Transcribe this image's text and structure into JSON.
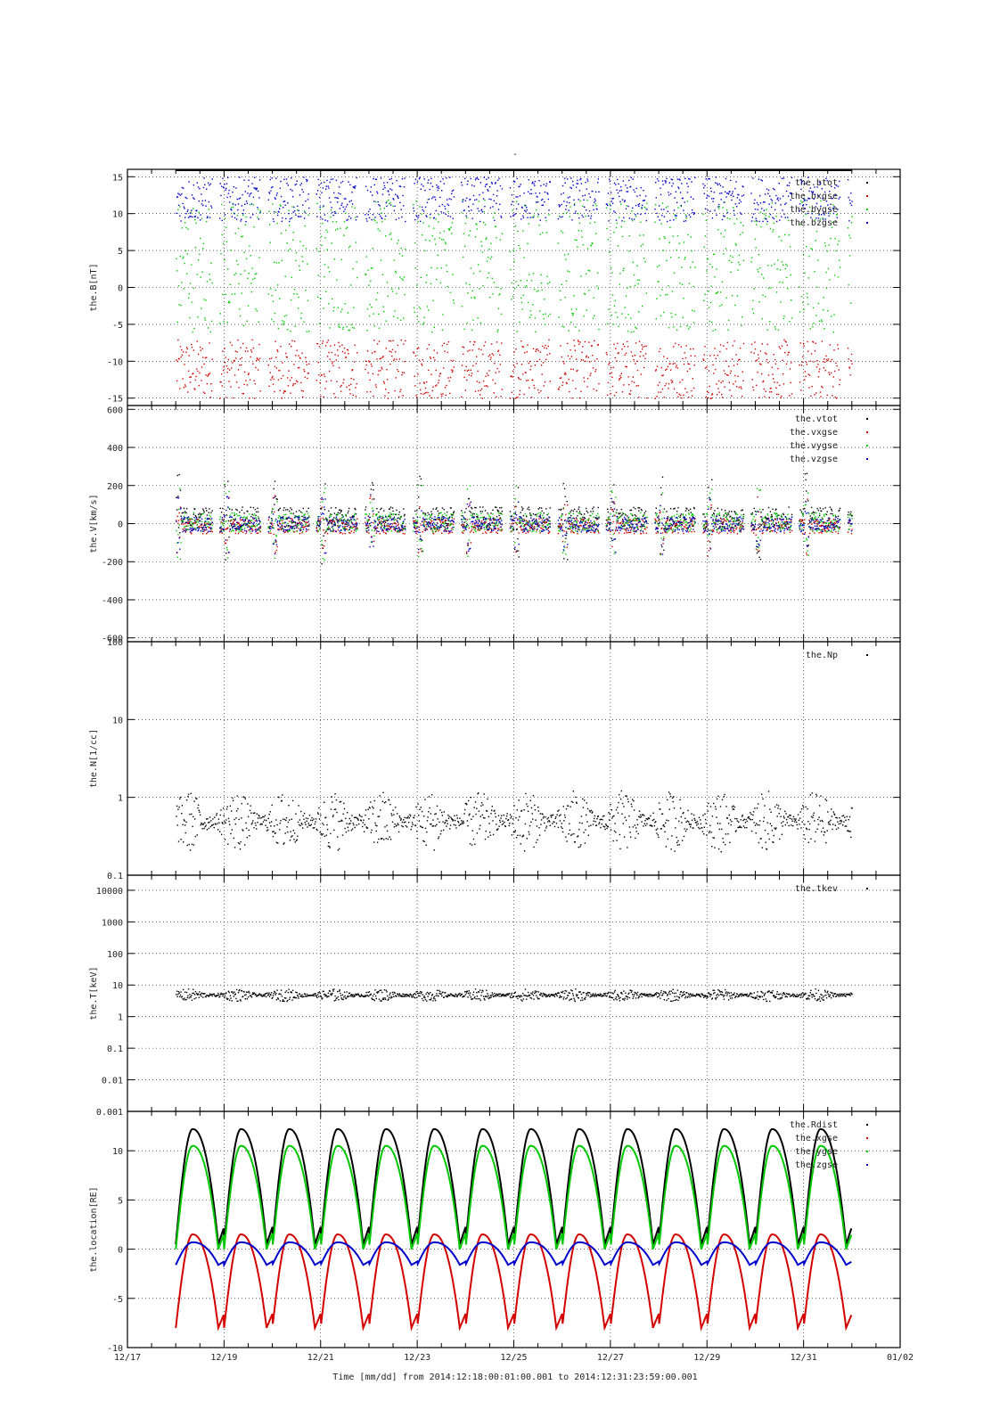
{
  "title": "-",
  "xaxis": {
    "label": "Time [mm/dd]  from 2014:12:18:00:01:00.001  to  2014:12:31:23:59:00.001",
    "range": [
      "2014-12-17",
      "2015-01-02"
    ],
    "ticks": [
      "12/17",
      "12/19",
      "12/21",
      "12/23",
      "12/25",
      "12/27",
      "12/29",
      "12/31",
      "01/02"
    ],
    "data_start": "2014-12-18T00:01",
    "data_end": "2014-12-31T23:59"
  },
  "colors": {
    "black": "#000000",
    "red": "#d40000",
    "green": "#00c800",
    "blue": "#0000cc"
  },
  "chart_data": [
    {
      "type": "scatter",
      "ylabel": "the.B[nT]",
      "ylim": [
        -16,
        16
      ],
      "yticks": [
        15,
        10,
        5,
        0,
        -5,
        -10,
        -15
      ],
      "ytick_labels": [
        "15",
        "10",
        "5",
        "0",
        "-5",
        "-10",
        "-15"
      ],
      "log": false,
      "grid": true,
      "legend": "top-right",
      "series": [
        {
          "name": "the.btot",
          "color": "black",
          "kind": "clamp_top"
        },
        {
          "name": "the.bxgse",
          "color": "red",
          "level": -11,
          "amp": 4
        },
        {
          "name": "the.bygse",
          "color": "green",
          "level": 3,
          "amp": 9
        },
        {
          "name": "the.bzgse",
          "color": "blue",
          "level": 12,
          "amp": 3
        }
      ]
    },
    {
      "type": "scatter",
      "ylabel": "the.V[km/s]",
      "ylim": [
        -620,
        620
      ],
      "yticks": [
        600,
        400,
        200,
        0,
        -200,
        -400,
        -600
      ],
      "ytick_labels": [
        "600",
        "400",
        "200",
        "0",
        "-200",
        "-400",
        "-600"
      ],
      "log": false,
      "grid": true,
      "legend": "top-right",
      "series": [
        {
          "name": "the.vtot",
          "color": "black",
          "level": 30,
          "amp": 60
        },
        {
          "name": "the.vxgse",
          "color": "red",
          "level": -10,
          "amp": 40
        },
        {
          "name": "the.vygse",
          "color": "green",
          "level": 10,
          "amp": 50
        },
        {
          "name": "the.vzgse",
          "color": "blue",
          "level": 0,
          "amp": 40
        }
      ]
    },
    {
      "type": "scatter",
      "ylabel": "the.N[1/cc]",
      "ylim": [
        0.1,
        100
      ],
      "yticks": [
        100,
        10,
        1,
        0.1
      ],
      "ytick_labels": [
        "100",
        "10",
        "1",
        "0.1"
      ],
      "log": true,
      "grid": true,
      "legend": "top-right",
      "series": [
        {
          "name": "the.Np",
          "color": "black",
          "level": 0.5,
          "amp": 0.4
        }
      ]
    },
    {
      "type": "scatter",
      "ylabel": "the.T[keV]",
      "ylim": [
        0.001,
        30000
      ],
      "yticks": [
        10000,
        1000,
        100,
        10,
        1,
        0.1,
        0.01,
        0.001
      ],
      "ytick_labels": [
        "10000",
        "1000",
        "100",
        "10",
        "1",
        "0.1",
        "0.01",
        "0.001"
      ],
      "log": true,
      "grid": true,
      "legend": "top-right",
      "series": [
        {
          "name": "the.tkev",
          "color": "black",
          "level": 5,
          "amp": 0.2
        }
      ]
    },
    {
      "type": "line",
      "ylabel": "the.location[RE]",
      "ylim": [
        -10,
        14
      ],
      "yticks": [
        10,
        5,
        0,
        -5,
        -10
      ],
      "ytick_labels": [
        "10",
        "5",
        "0",
        "-5",
        "-10"
      ],
      "log": false,
      "grid": true,
      "legend": "top-right",
      "orbit_period_days": 1.0,
      "series": [
        {
          "name": "the.Rdist",
          "color": "black",
          "peak": 12.2,
          "min": 0.5
        },
        {
          "name": "the.xgse",
          "color": "red",
          "peak": 1.5,
          "min": -8.0
        },
        {
          "name": "the.ygse",
          "color": "green",
          "peak": 10.5,
          "min": 0.0
        },
        {
          "name": "the.zgse",
          "color": "blue",
          "peak": 0.7,
          "min": -1.6
        }
      ]
    }
  ]
}
